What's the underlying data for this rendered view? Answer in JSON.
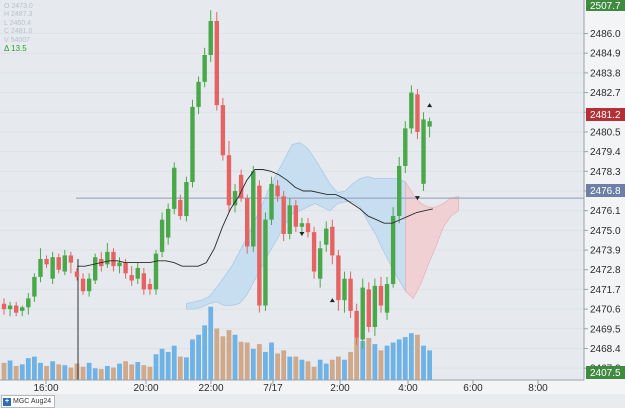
{
  "ohlc": {
    "open": "O 2473.0",
    "high": "H 2487.3",
    "low": "L 2460.4",
    "close": "C 2481.0",
    "volume": "V 54007",
    "change": "Δ 13.5"
  },
  "price_labels": [
    "2486.0",
    "2484.9",
    "2483.8",
    "2482.7",
    "2481.6",
    "2480.5",
    "2479.4",
    "2478.3",
    "2477.2",
    "2476.1",
    "2475.0",
    "2473.9",
    "2472.8",
    "2471.7",
    "2470.6",
    "2469.5",
    "2468.4",
    "2467.3"
  ],
  "time_labels": [
    "16:00",
    "20:00",
    "22:00",
    "7/17",
    "2:00",
    "4:00",
    "6:00",
    "8:00"
  ],
  "tags": {
    "high": "2507.7",
    "current": "2481.2",
    "ref": "2476.8",
    "low": "2407.5"
  },
  "tab": {
    "icon": "+",
    "label": "MGC Aug24"
  },
  "colors": {
    "up": "#4aa84a",
    "down": "#e46464",
    "volume_up": "#6fb2e6",
    "volume_down": "#cfa98a",
    "cloud_bull": "#c6ddf1",
    "cloud_bear": "#f1cfd2",
    "tag_high": "#3f8a3f",
    "tag_current": "#b23036",
    "tag_ref": "#6e7fa6",
    "tag_low": "#3f8a3f"
  },
  "chart_data": {
    "type": "candlestick",
    "y_min": 2466.75,
    "y_max": 2487.65,
    "candles": [
      [
        2470.9,
        2471.2,
        2470.3,
        2470.6
      ],
      [
        2470.6,
        2471.0,
        2470.2,
        2470.8
      ],
      [
        2470.8,
        2471.0,
        2470.2,
        2470.4
      ],
      [
        2470.5,
        2470.8,
        2470.2,
        2470.7
      ],
      [
        2470.7,
        2471.5,
        2470.3,
        2471.2
      ],
      [
        2471.3,
        2472.6,
        2471.0,
        2472.4
      ],
      [
        2472.4,
        2474.0,
        2472.1,
        2473.4
      ],
      [
        2473.4,
        2473.6,
        2472.9,
        2473.1
      ],
      [
        2472.3,
        2473.8,
        2472.0,
        2473.5
      ],
      [
        2473.5,
        2473.7,
        2472.6,
        2472.8
      ],
      [
        2472.7,
        2473.9,
        2472.5,
        2473.6
      ],
      [
        2473.6,
        2473.8,
        2472.6,
        2473.2
      ],
      [
        2472.7,
        2472.9,
        2472.2,
        2472.4
      ],
      [
        2472.3,
        2472.6,
        2471.4,
        2471.6
      ],
      [
        2471.6,
        2472.6,
        2471.3,
        2472.3
      ],
      [
        2472.2,
        2473.7,
        2472.0,
        2473.5
      ],
      [
        2473.4,
        2473.8,
        2472.7,
        2473.0
      ],
      [
        2473.1,
        2474.3,
        2472.9,
        2473.8
      ],
      [
        2473.8,
        2474.0,
        2472.7,
        2473.0
      ],
      [
        2473.0,
        2473.5,
        2472.6,
        2473.2
      ],
      [
        2473.2,
        2473.4,
        2472.3,
        2472.6
      ],
      [
        2472.5,
        2473.0,
        2471.9,
        2472.2
      ],
      [
        2472.3,
        2473.2,
        2472.0,
        2472.9
      ],
      [
        2472.6,
        2472.9,
        2471.4,
        2471.7
      ],
      [
        2472.0,
        2472.3,
        2471.4,
        2471.7
      ],
      [
        2471.7,
        2473.9,
        2471.4,
        2473.7
      ],
      [
        2473.8,
        2476.0,
        2473.5,
        2475.6
      ],
      [
        2474.6,
        2476.5,
        2474.2,
        2476.2
      ],
      [
        2476.2,
        2478.8,
        2475.9,
        2478.5
      ],
      [
        2476.7,
        2477.0,
        2475.6,
        2475.8
      ],
      [
        2475.8,
        2478.0,
        2475.5,
        2477.7
      ],
      [
        2477.7,
        2482.3,
        2477.4,
        2481.9
      ],
      [
        2481.9,
        2483.6,
        2481.5,
        2483.3
      ],
      [
        2483.3,
        2485.2,
        2483.0,
        2484.8
      ],
      [
        2484.8,
        2487.3,
        2484.4,
        2486.7
      ],
      [
        2486.7,
        2487.2,
        2481.7,
        2482.0
      ],
      [
        2482.0,
        2482.4,
        2478.9,
        2479.2
      ],
      [
        2479.2,
        2480.0,
        2476.0,
        2476.4
      ],
      [
        2476.4,
        2477.6,
        2476.0,
        2477.2
      ],
      [
        2478.1,
        2478.4,
        2476.6,
        2476.8
      ],
      [
        2476.8,
        2477.0,
        2473.7,
        2474.1
      ],
      [
        2474.1,
        2478.6,
        2473.8,
        2478.3
      ],
      [
        2477.5,
        2477.8,
        2470.4,
        2470.8
      ],
      [
        2470.8,
        2476.0,
        2470.5,
        2475.6
      ],
      [
        2475.6,
        2478.0,
        2475.3,
        2477.6
      ],
      [
        2477.5,
        2477.8,
        2476.6,
        2476.9
      ],
      [
        2476.9,
        2477.2,
        2474.4,
        2474.8
      ],
      [
        2474.8,
        2476.8,
        2474.5,
        2476.4
      ],
      [
        2476.4,
        2476.7,
        2474.9,
        2475.2
      ],
      [
        2475.2,
        2475.7,
        2474.7,
        2475.4
      ],
      [
        2475.4,
        2475.7,
        2474.6,
        2474.9
      ],
      [
        2474.9,
        2475.2,
        2472.3,
        2472.7
      ],
      [
        2472.3,
        2474.4,
        2471.8,
        2474.0
      ],
      [
        2474.2,
        2475.5,
        2473.8,
        2475.1
      ],
      [
        2475.2,
        2475.6,
        2473.1,
        2473.6
      ],
      [
        2473.6,
        2473.9,
        2470.5,
        2471.1
      ],
      [
        2471.1,
        2472.7,
        2470.4,
        2472.3
      ],
      [
        2472.3,
        2472.7,
        2470.1,
        2470.5
      ],
      [
        2470.5,
        2470.9,
        2468.6,
        2469.0
      ],
      [
        2468.9,
        2472.3,
        2468.4,
        2471.8
      ],
      [
        2471.7,
        2472.1,
        2469.3,
        2469.6
      ],
      [
        2469.6,
        2472.3,
        2469.1,
        2471.9
      ],
      [
        2471.9,
        2472.4,
        2470.4,
        2470.8
      ],
      [
        2470.4,
        2472.4,
        2470.0,
        2472.0
      ],
      [
        2472.0,
        2476.3,
        2471.8,
        2475.8
      ],
      [
        2475.8,
        2479.1,
        2475.4,
        2478.6
      ],
      [
        2478.6,
        2481.1,
        2478.2,
        2480.7
      ],
      [
        2480.7,
        2483.1,
        2480.4,
        2482.7
      ],
      [
        2482.6,
        2482.9,
        2480.1,
        2480.5
      ],
      [
        2477.6,
        2481.6,
        2477.2,
        2481.2
      ],
      [
        2480.8,
        2481.3,
        2480.2,
        2481.1
      ]
    ],
    "volume": [
      22,
      25,
      18,
      20,
      28,
      30,
      22,
      18,
      24,
      20,
      19,
      16,
      21,
      17,
      22,
      15,
      14,
      18,
      16,
      21,
      24,
      20,
      23,
      19,
      17,
      33,
      40,
      36,
      44,
      30,
      29,
      52,
      58,
      70,
      94,
      66,
      56,
      64,
      58,
      49,
      48,
      40,
      46,
      36,
      48,
      34,
      38,
      30,
      30,
      26,
      24,
      17,
      26,
      21,
      26,
      30,
      26,
      36,
      54,
      50,
      54,
      46,
      38,
      44,
      48,
      52,
      55,
      60,
      58,
      44,
      38
    ],
    "ma": [
      2473.0,
      2473.0,
      2473.1,
      2473.2,
      2473.3,
      2473.3,
      2473.2,
      2473.2,
      2473.2,
      2473.2,
      2473.3,
      2473.3,
      2473.2,
      2473.0,
      2473.0,
      2473.0,
      2473.2,
      2474.0,
      2475.2,
      2476.2,
      2476.9,
      2477.8,
      2478.4,
      2478.4,
      2478.3,
      2478.1,
      2477.8,
      2477.4,
      2477.2,
      2477.2,
      2477.1,
      2477.0,
      2477.0,
      2476.8,
      2476.5,
      2476.2,
      2475.8,
      2475.6,
      2475.4,
      2475.4,
      2475.6,
      2475.8,
      2476.0,
      2476.1,
      2476.2
    ],
    "cloud_top": [
      2470.9,
      2471.0,
      2471.1,
      2471.3,
      2471.8,
      2472.4,
      2473.0,
      2473.8,
      2474.6,
      2475.5,
      2476.4,
      2477.4,
      2478.2,
      2479.0,
      2479.8,
      2479.9,
      2479.6,
      2479.0,
      2478.3,
      2477.6,
      2477.1,
      2477.2,
      2477.6,
      2477.9,
      2478.0,
      2477.9,
      2477.9,
      2477.9,
      2477.9,
      2477.7,
      2477.0,
      2476.5,
      2476.3,
      2476.3,
      2476.5,
      2476.8,
      2476.9
    ],
    "cloud_bottom": [
      2470.6,
      2470.6,
      2470.7,
      2470.9,
      2471.0,
      2470.8,
      2470.8,
      2470.9,
      2471.4,
      2472.2,
      2473.0,
      2473.8,
      2474.5,
      2475.3,
      2475.9,
      2476.1,
      2476.3,
      2476.5,
      2476.3,
      2476.1,
      2476.5,
      2476.6,
      2476.6,
      2476.3,
      2475.5,
      2474.8,
      2473.9,
      2473.1,
      2472.3,
      2471.6,
      2471.2,
      2472.0,
      2473.1,
      2474.1,
      2475.2,
      2475.8,
      2476.1
    ],
    "ref_line": 2476.8,
    "markers": [
      {
        "i": 49,
        "dir": "down",
        "y": 2474.8
      },
      {
        "i": 54,
        "dir": "up",
        "y": 2471.1
      },
      {
        "i": 68,
        "dir": "down",
        "y": 2476.8
      },
      {
        "i": 70,
        "dir": "up",
        "y": 2482.0
      }
    ]
  }
}
